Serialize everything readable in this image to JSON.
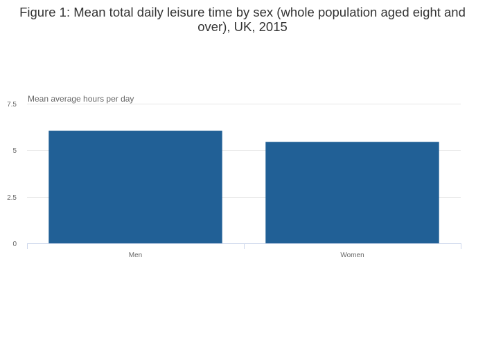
{
  "chart_data": {
    "type": "bar",
    "title": "Figure 1: Mean total daily leisure time by sex (whole population aged eight and over), UK, 2015",
    "ylabel": "Mean average hours per day",
    "xlabel": "",
    "categories": [
      "Men",
      "Women"
    ],
    "values": [
      6.05,
      5.45
    ],
    "ylim": [
      0,
      7.5
    ],
    "yticks": [
      0,
      2.5,
      5,
      7.5
    ],
    "ytick_labels": [
      "0",
      "2.5",
      "5",
      "7.5"
    ],
    "grid": true,
    "legend": "none",
    "colors": {
      "bar": "#216096",
      "grid": "#e6e6e6",
      "axis": "#ccd6eb",
      "text": "#333333",
      "tick": "#666666"
    }
  }
}
